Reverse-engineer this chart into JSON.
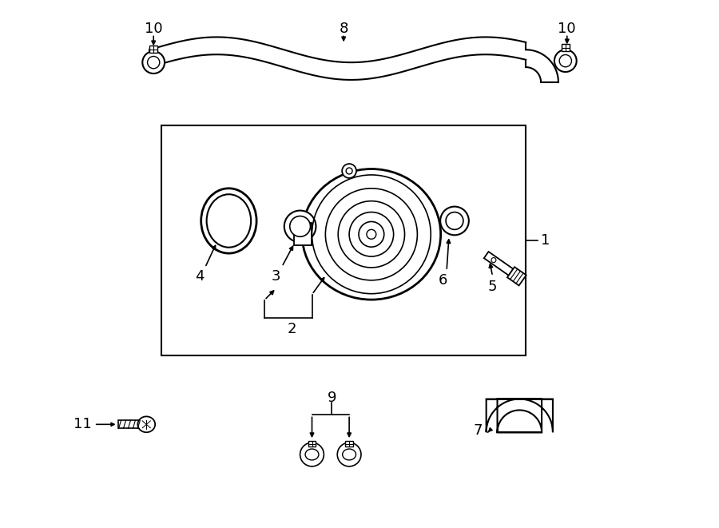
{
  "fig_width": 9.0,
  "fig_height": 6.61,
  "bg_color": "#ffffff",
  "line_color": "#000000",
  "lw_main": 1.5,
  "lw_thin": 1.2,
  "label_fs": 13
}
